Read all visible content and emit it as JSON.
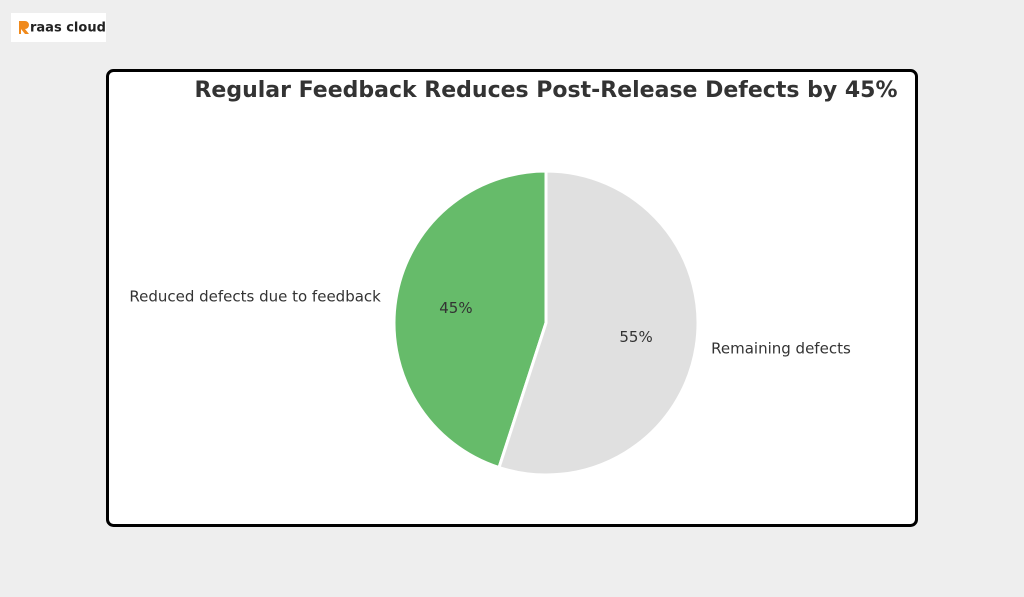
{
  "brand": "raas cloud",
  "chart_data": {
    "type": "pie",
    "title": "Regular Feedback Reduces Post-Release Defects by 45%",
    "categories": [
      "Reduced defects due to feedback",
      "Remaining defects"
    ],
    "values": [
      45,
      55
    ],
    "value_labels": [
      "45%",
      "55%"
    ],
    "colors": [
      "#66bb6a",
      "#e0e0e0"
    ]
  }
}
